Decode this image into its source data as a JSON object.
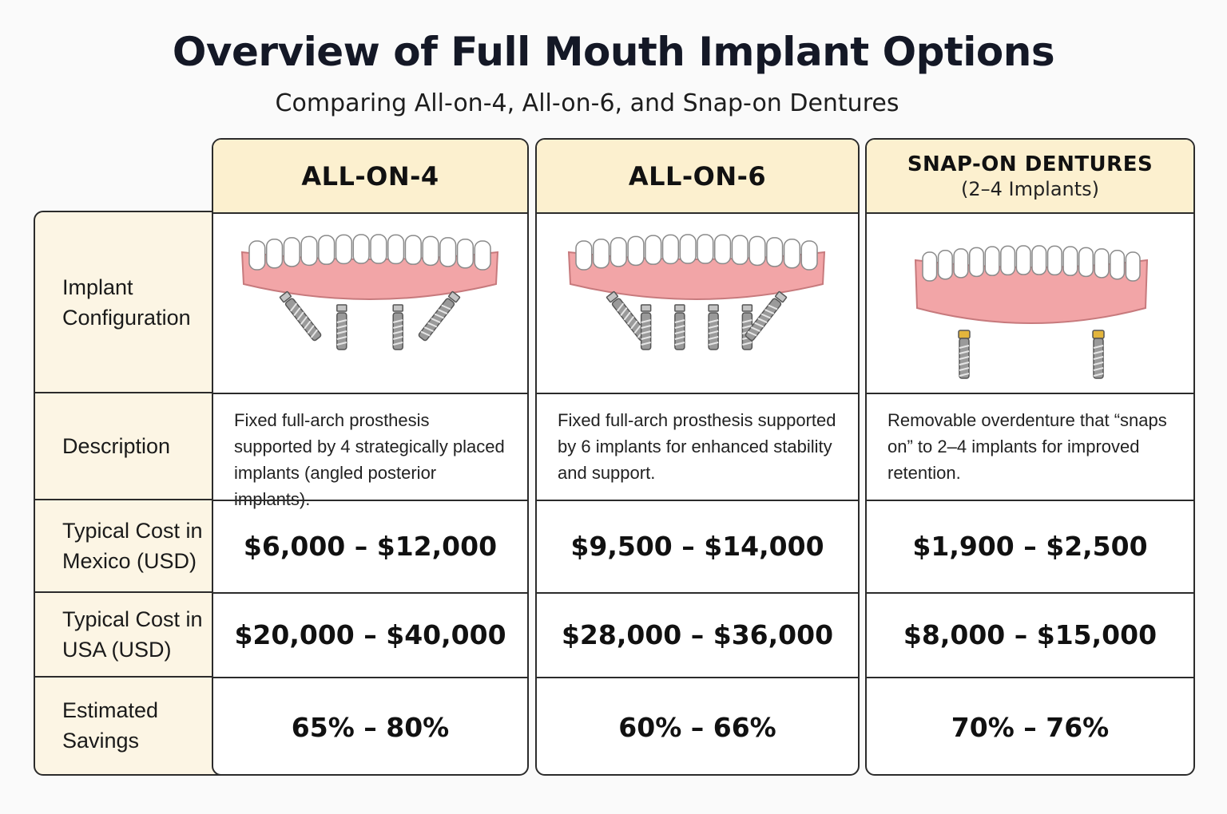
{
  "title": "Overview of Full Mouth Implant Options",
  "subtitle": "Comparing All-on-4, All-on-6, and Snap-on Dentures",
  "row_labels": {
    "config": "Implant Configuration",
    "description": "Description",
    "cost_mexico": "Typical Cost in Mexico (USD)",
    "cost_usa": "Typical Cost in USA (USD)",
    "savings": "Estimated Savings"
  },
  "options": [
    {
      "name": "ALL-ON-4",
      "note": "",
      "illustration": "full-arch-4-implants-icon",
      "description": "Fixed full-arch prosthesis supported by 4 strategically placed implants (angled posterior implants).",
      "cost_mexico": "$6,000 – $12,000",
      "cost_usa": "$20,000 – $40,000",
      "savings": "65% – 80%"
    },
    {
      "name": "ALL-ON-6",
      "note": "",
      "illustration": "full-arch-6-implants-icon",
      "description": "Fixed full-arch prosthesis supported by 6 implants for enhanced stability and support.",
      "cost_mexico": "$9,500 – $14,000",
      "cost_usa": "$28,000 – $36,000",
      "savings": "60% – 66%"
    },
    {
      "name": "SNAP-ON DENTURES",
      "note": "(2–4 Implants)",
      "illustration": "overdenture-2-implants-icon",
      "description": "Removable overdenture that “snaps on” to 2–4 implants for improved retention.",
      "cost_mexico": "$1,900 – $2,500",
      "cost_usa": "$8,000 – $15,000",
      "savings": "70% – 76%"
    }
  ],
  "colors": {
    "header_bg": "#fcf0cf",
    "label_bg": "#fcf5e4",
    "gum": "#f2a5a7",
    "tooth": "#ffffff",
    "implant": "#9a9a9a",
    "abutment": "#e3b53c"
  }
}
